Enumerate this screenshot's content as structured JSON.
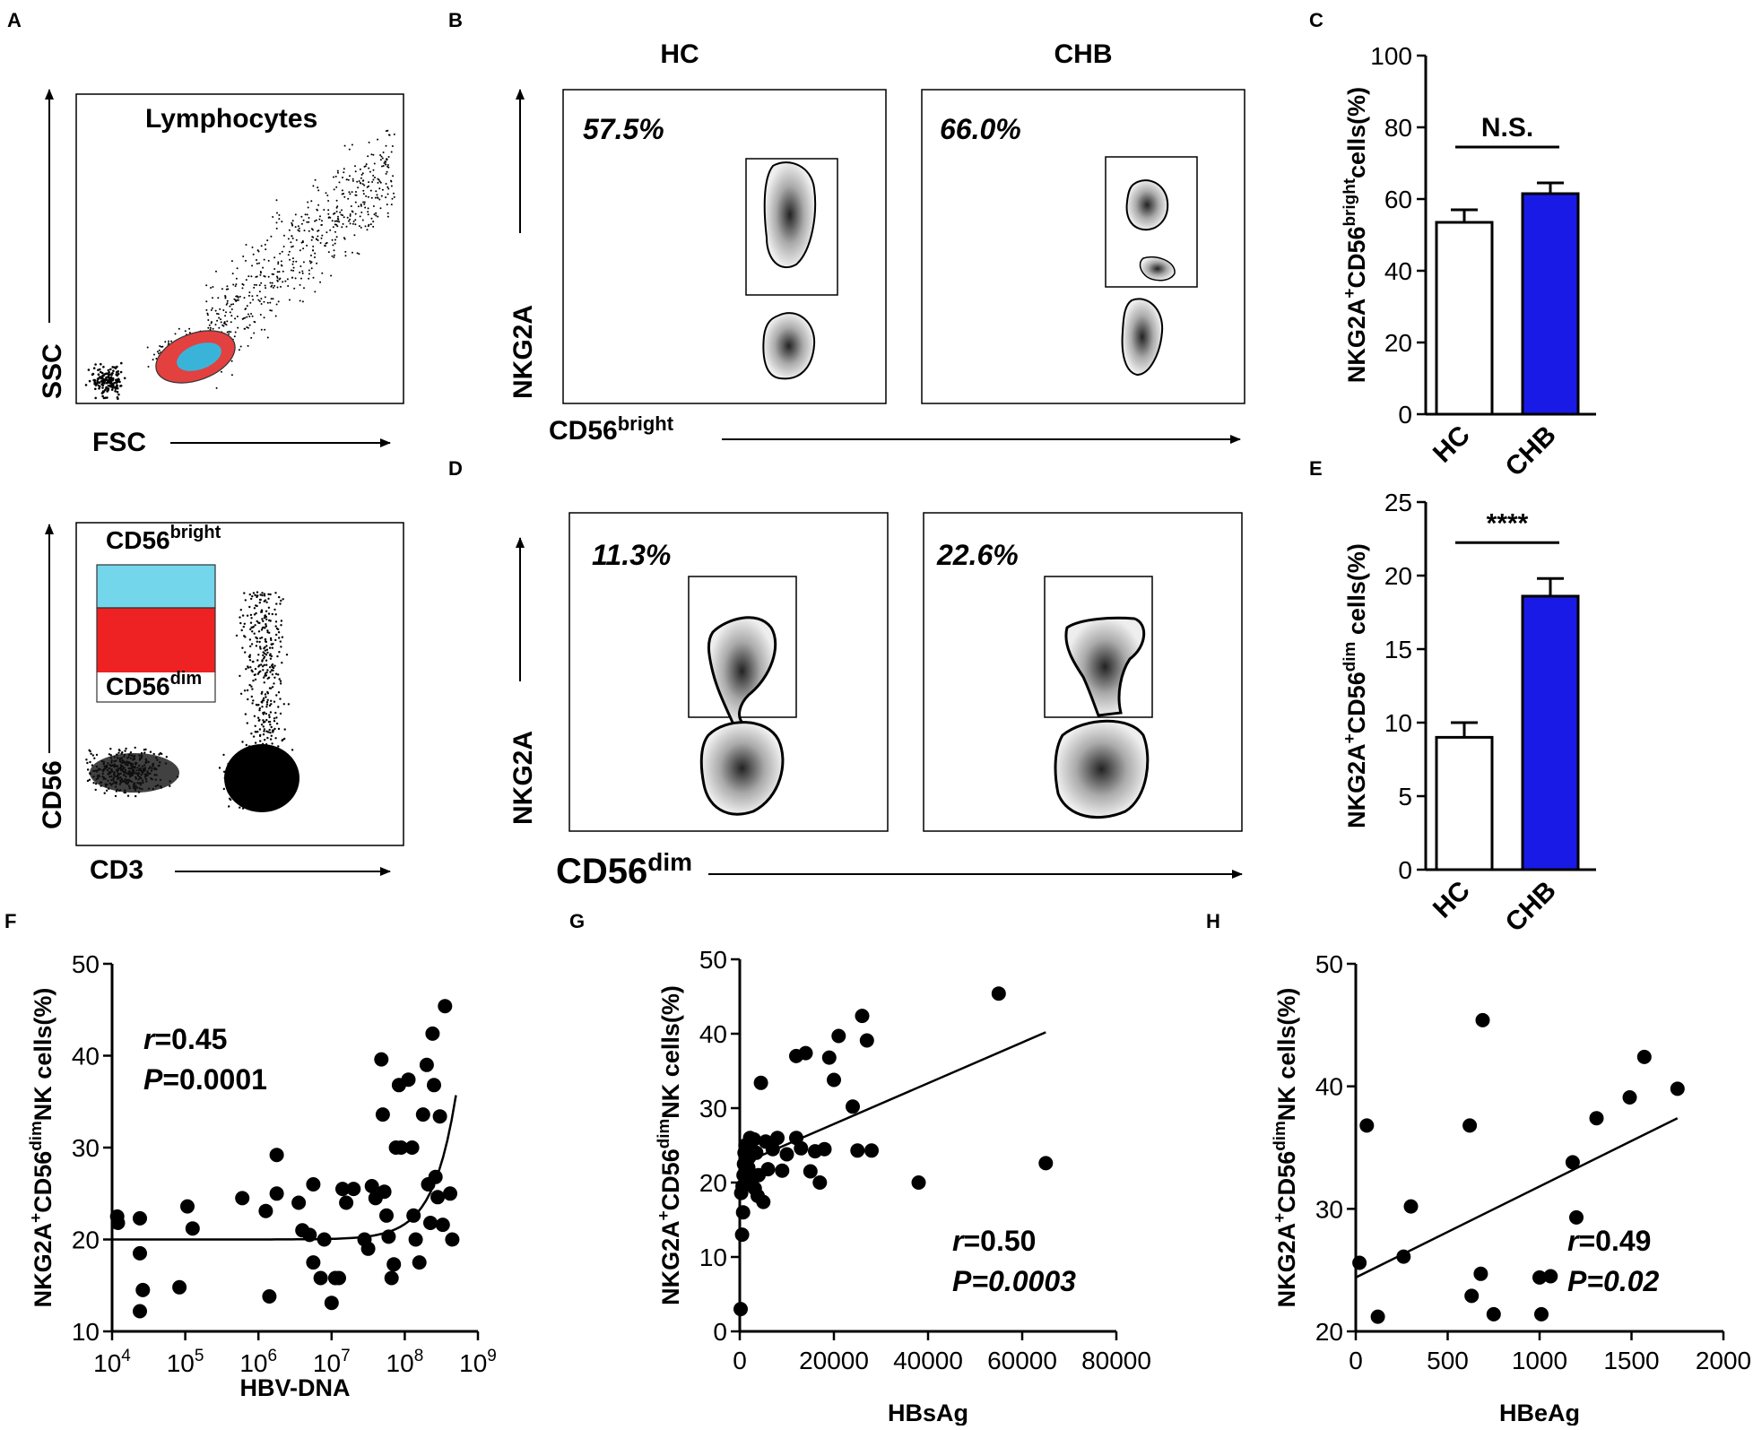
{
  "panel_letters": [
    "A",
    "B",
    "C",
    "D",
    "E",
    "F",
    "G",
    "H"
  ],
  "panelA": {
    "top": {
      "title": "Lymphocytes",
      "xlabel": "FSC",
      "ylabel": "SSC"
    },
    "bottom": {
      "gate_bright": "CD56",
      "gate_bright_sup": "bright",
      "gate_dim": "CD56",
      "gate_dim_sup": "dim",
      "xlabel": "CD3",
      "ylabel": "CD56"
    }
  },
  "panelB": {
    "col_hc": "HC",
    "col_chb": "CHB",
    "hc_pct": "57.5%",
    "chb_pct": "66.0%",
    "ylabel": "NKG2A",
    "xlabel": "CD56",
    "xlabel_sup": "bright"
  },
  "panelD": {
    "hc_pct": "11.3%",
    "chb_pct": "22.6%",
    "ylabel": "NKG2A",
    "xlabel": "CD56",
    "xlabel_sup": "dim"
  },
  "chart_data": [
    {
      "id": "C",
      "type": "bar",
      "categories": [
        "HC",
        "CHB"
      ],
      "values": [
        53.5,
        61.5
      ],
      "errors": [
        3.5,
        3
      ],
      "colors": [
        "#ffffff",
        "#1a1ae6"
      ],
      "ylim": [
        0,
        100
      ],
      "yticks": [
        0,
        20,
        40,
        60,
        80,
        100
      ],
      "ylabel_pre": "NKG2A",
      "ylabel_sup1": "+",
      "ylabel_mid": "CD56",
      "ylabel_sup2": "bright",
      "ylabel_post": "cells(%)",
      "significance": "N.S."
    },
    {
      "id": "E",
      "type": "bar",
      "categories": [
        "HC",
        "CHB"
      ],
      "values": [
        9,
        18.6
      ],
      "errors": [
        1,
        1.2
      ],
      "colors": [
        "#ffffff",
        "#1a1ae6"
      ],
      "ylim": [
        0,
        25
      ],
      "yticks": [
        0,
        5,
        10,
        15,
        20,
        25
      ],
      "ylabel_pre": "NKG2A",
      "ylabel_sup1": "+",
      "ylabel_mid": "CD56",
      "ylabel_sup2": "dim",
      "ylabel_post": " cells(%)",
      "significance": "****"
    },
    {
      "id": "F",
      "type": "scatter",
      "xscale": "log",
      "xlabel": "HBV-DNA",
      "ylabel_pre": "NKG2A",
      "ylabel_sup1": "+",
      "ylabel_mid": "CD56",
      "ylabel_sup2": "dim",
      "ylabel_post": "NK cells(%)",
      "xlim": [
        4,
        9
      ],
      "ylim": [
        10,
        50
      ],
      "xtick_base": "10",
      "xtick_exps": [
        "4",
        "5",
        "6",
        "7",
        "8",
        "9"
      ],
      "yticks": [
        10,
        20,
        30,
        40,
        50
      ],
      "r_label": "r",
      "r_value": "=0.45",
      "p_label": "P",
      "p_value": "=0.0001",
      "fit": "exponential",
      "points": [
        [
          4.07,
          22.5
        ],
        [
          4.08,
          21.8
        ],
        [
          4.38,
          22.3
        ],
        [
          4.38,
          18.5
        ],
        [
          4.42,
          14.5
        ],
        [
          4.38,
          12.2
        ],
        [
          4.92,
          14.8
        ],
        [
          5.03,
          23.6
        ],
        [
          5.1,
          21.2
        ],
        [
          5.78,
          24.5
        ],
        [
          6.1,
          23.1
        ],
        [
          6.15,
          13.8
        ],
        [
          6.25,
          25
        ],
        [
          6.25,
          29.2
        ],
        [
          6.6,
          21
        ],
        [
          6.55,
          24
        ],
        [
          6.75,
          26
        ],
        [
          6.7,
          20.5
        ],
        [
          6.75,
          17.5
        ],
        [
          6.85,
          15.8
        ],
        [
          6.9,
          20
        ],
        [
          7.0,
          13.1
        ],
        [
          7.05,
          15.8
        ],
        [
          7.1,
          15.8
        ],
        [
          7.15,
          25.5
        ],
        [
          7.2,
          24
        ],
        [
          7.3,
          25.5
        ],
        [
          7.45,
          20
        ],
        [
          7.5,
          19
        ],
        [
          7.55,
          25.8
        ],
        [
          7.6,
          24.5
        ],
        [
          7.68,
          39.6
        ],
        [
          7.7,
          33.6
        ],
        [
          7.72,
          25.2
        ],
        [
          7.75,
          22.6
        ],
        [
          7.78,
          20.3
        ],
        [
          7.82,
          15.8
        ],
        [
          7.85,
          17.3
        ],
        [
          7.88,
          30
        ],
        [
          7.92,
          36.8
        ],
        [
          7.95,
          30
        ],
        [
          8.05,
          37.4
        ],
        [
          8.1,
          30
        ],
        [
          8.12,
          22.6
        ],
        [
          8.15,
          20
        ],
        [
          8.2,
          17.5
        ],
        [
          8.25,
          33.6
        ],
        [
          8.3,
          39
        ],
        [
          8.32,
          26
        ],
        [
          8.35,
          21.8
        ],
        [
          8.38,
          42.4
        ],
        [
          8.4,
          36.8
        ],
        [
          8.42,
          26.8
        ],
        [
          8.45,
          24.6
        ],
        [
          8.48,
          33.4
        ],
        [
          8.52,
          21.6
        ],
        [
          8.55,
          45.4
        ],
        [
          8.62,
          25
        ],
        [
          8.65,
          20
        ]
      ]
    },
    {
      "id": "G",
      "type": "scatter",
      "xlabel": "HBsAg",
      "ylabel_pre": "NKG2A",
      "ylabel_sup1": "+",
      "ylabel_mid": "CD56",
      "ylabel_sup2": "dim",
      "ylabel_post": "NK cells(%)",
      "xlim": [
        0,
        80000
      ],
      "ylim": [
        0,
        50
      ],
      "xticks": [
        0,
        20000,
        40000,
        60000,
        80000
      ],
      "yticks": [
        0,
        10,
        20,
        30,
        40,
        50
      ],
      "r_label": "r",
      "r_value": "=0.50",
      "p_label": "P=0.0003",
      "fit": "linear",
      "fit_line": [
        [
          1500,
          22.8
        ],
        [
          65000,
          40.2
        ]
      ],
      "points": [
        [
          200,
          3
        ],
        [
          500,
          13
        ],
        [
          700,
          16
        ],
        [
          300,
          18.6
        ],
        [
          600,
          19.5
        ],
        [
          800,
          21
        ],
        [
          900,
          22.5
        ],
        [
          1000,
          24
        ],
        [
          1200,
          25
        ],
        [
          1500,
          20.5
        ],
        [
          1800,
          22
        ],
        [
          2000,
          23.4
        ],
        [
          2200,
          26
        ],
        [
          2500,
          24
        ],
        [
          2800,
          21
        ],
        [
          3000,
          25.8
        ],
        [
          3200,
          19.2
        ],
        [
          3500,
          24
        ],
        [
          3800,
          18.2
        ],
        [
          4000,
          21
        ],
        [
          4500,
          33.4
        ],
        [
          5000,
          17.4
        ],
        [
          5500,
          25.5
        ],
        [
          6000,
          21.8
        ],
        [
          7000,
          24.5
        ],
        [
          8000,
          26
        ],
        [
          9000,
          21.6
        ],
        [
          10000,
          23.8
        ],
        [
          12000,
          37
        ],
        [
          12000,
          26
        ],
        [
          13000,
          24.6
        ],
        [
          14000,
          37.4
        ],
        [
          15000,
          21.5
        ],
        [
          16000,
          24.2
        ],
        [
          17000,
          20
        ],
        [
          18000,
          24.5
        ],
        [
          19000,
          36.8
        ],
        [
          20000,
          33.8
        ],
        [
          21000,
          39.7
        ],
        [
          24000,
          30.2
        ],
        [
          25000,
          24.3
        ],
        [
          26000,
          42.4
        ],
        [
          27000,
          39.1
        ],
        [
          28000,
          24.3
        ],
        [
          38000,
          20
        ],
        [
          55000,
          45.4
        ],
        [
          65000,
          22.6
        ]
      ]
    },
    {
      "id": "H",
      "type": "scatter",
      "xlabel": "HBeAg",
      "ylabel_pre": "NKG2A",
      "ylabel_sup1": "+",
      "ylabel_mid": "CD56",
      "ylabel_sup2": "dim",
      "ylabel_post": "NK cells(%)",
      "xlim": [
        0,
        2000
      ],
      "ylim": [
        20,
        50
      ],
      "xticks": [
        0,
        500,
        1000,
        1500,
        2000
      ],
      "yticks": [
        20,
        30,
        40,
        50
      ],
      "r_label": "r",
      "r_value": "=0.49",
      "p_label": "P=0.02",
      "fit": "linear",
      "fit_line": [
        [
          0,
          24.4
        ],
        [
          1750,
          37.4
        ]
      ],
      "points": [
        [
          20,
          25.6
        ],
        [
          60,
          36.8
        ],
        [
          120,
          21.2
        ],
        [
          260,
          26.1
        ],
        [
          300,
          30.2
        ],
        [
          620,
          36.8
        ],
        [
          630,
          22.9
        ],
        [
          680,
          24.7
        ],
        [
          690,
          45.4
        ],
        [
          750,
          21.4
        ],
        [
          1000,
          24.4
        ],
        [
          1010,
          21.4
        ],
        [
          1060,
          24.5
        ],
        [
          1180,
          33.8
        ],
        [
          1200,
          29.3
        ],
        [
          1310,
          37.4
        ],
        [
          1490,
          39.1
        ],
        [
          1570,
          42.4
        ],
        [
          1750,
          39.8
        ]
      ]
    }
  ]
}
